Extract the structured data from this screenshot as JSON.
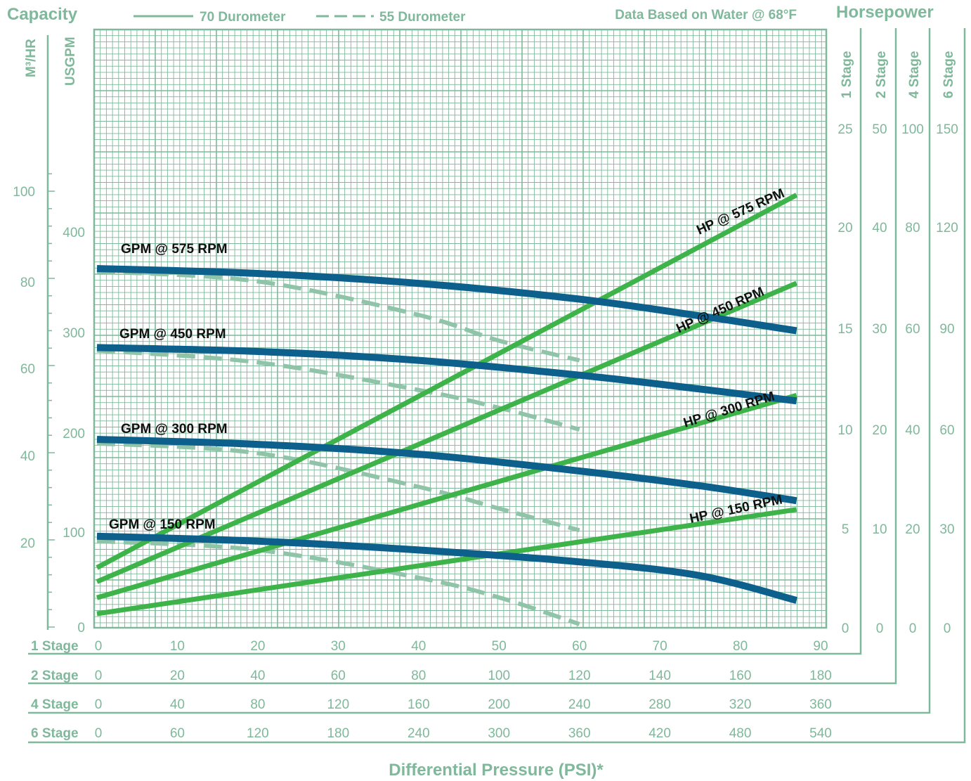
{
  "colors": {
    "axis_text": "#7fb89a",
    "grid": "#7fb89a",
    "gpm_curve": "#0d5f8c",
    "hp_curve": "#3db34a",
    "dash_curve": "#8fc4a8",
    "label_text": "#111111"
  },
  "header": {
    "capacity": "Capacity",
    "horsepower": "Horsepower",
    "legend_solid": "70 Durometer",
    "legend_dashed": "55 Durometer",
    "note": "Data Based on Water @ 68°F"
  },
  "left_axes": {
    "m3hr_title": "M³/HR",
    "usgpm_title": "USGPM",
    "m3hr_ticks": [
      "100",
      "80",
      "60",
      "40",
      "20"
    ],
    "usgpm_ticks": [
      "400",
      "300",
      "200",
      "100",
      "0"
    ]
  },
  "right_axes": [
    {
      "title": "1 Stage",
      "ticks": [
        "25",
        "20",
        "15",
        "10",
        "5",
        "0"
      ]
    },
    {
      "title": "2 Stage",
      "ticks": [
        "50",
        "40",
        "30",
        "20",
        "10",
        "0"
      ]
    },
    {
      "title": "4 Stage",
      "ticks": [
        "100",
        "80",
        "60",
        "40",
        "20",
        "0"
      ]
    },
    {
      "title": "6 Stage",
      "ticks": [
        "150",
        "120",
        "90",
        "60",
        "30",
        "0"
      ]
    }
  ],
  "bottom_axes": [
    {
      "title": "1 Stage",
      "ticks": [
        "0",
        "10",
        "20",
        "30",
        "40",
        "50",
        "60",
        "70",
        "80",
        "90"
      ]
    },
    {
      "title": "2 Stage",
      "ticks": [
        "0",
        "20",
        "40",
        "60",
        "80",
        "100",
        "120",
        "140",
        "160",
        "180"
      ]
    },
    {
      "title": "4 Stage",
      "ticks": [
        "0",
        "40",
        "80",
        "120",
        "160",
        "200",
        "240",
        "280",
        "320",
        "360"
      ]
    },
    {
      "title": "6 Stage",
      "ticks": [
        "0",
        "60",
        "120",
        "180",
        "240",
        "300",
        "360",
        "420",
        "480",
        "540"
      ]
    }
  ],
  "xlabel": "Differential Pressure (PSI)*",
  "chart_data": {
    "type": "line",
    "xlim": [
      0,
      90
    ],
    "gpm_ylim": [
      0,
      440
    ],
    "hp_ylim": [
      0,
      25
    ],
    "series": [
      {
        "name": "GPM @ 575 RPM",
        "kind": "gpm",
        "style": "solid",
        "x": [
          0,
          20,
          40,
          60,
          75,
          87
        ],
        "y": [
          363,
          358,
          348,
          332,
          315,
          300
        ]
      },
      {
        "name": "GPM @ 450 RPM",
        "kind": "gpm",
        "style": "solid",
        "x": [
          0,
          20,
          40,
          60,
          75,
          87
        ],
        "y": [
          283,
          279,
          270,
          255,
          241,
          229
        ]
      },
      {
        "name": "GPM @ 300 RPM",
        "kind": "gpm",
        "style": "solid",
        "x": [
          0,
          20,
          40,
          60,
          75,
          87
        ],
        "y": [
          190,
          185,
          175,
          158,
          143,
          128
        ]
      },
      {
        "name": "GPM @ 150 RPM",
        "kind": "gpm",
        "style": "solid",
        "x": [
          0,
          20,
          40,
          60,
          75,
          87
        ],
        "y": [
          92,
          87,
          78,
          66,
          52,
          27
        ]
      },
      {
        "name": "",
        "kind": "gpm",
        "style": "dashed",
        "x": [
          0,
          20,
          40,
          50,
          60
        ],
        "y": [
          360,
          350,
          316,
          290,
          270
        ]
      },
      {
        "name": "",
        "kind": "gpm",
        "style": "dashed",
        "x": [
          0,
          20,
          40,
          50,
          60
        ],
        "y": [
          280,
          268,
          240,
          222,
          200
        ]
      },
      {
        "name": "",
        "kind": "gpm",
        "style": "dashed",
        "x": [
          0,
          20,
          40,
          50,
          60
        ],
        "y": [
          186,
          176,
          142,
          120,
          98
        ]
      },
      {
        "name": "",
        "kind": "gpm",
        "style": "dashed",
        "x": [
          0,
          20,
          40,
          50,
          60
        ],
        "y": [
          87,
          78,
          50,
          30,
          3
        ]
      },
      {
        "name": "HP @ 575 RPM",
        "kind": "hp",
        "style": "solid",
        "x": [
          0,
          87
        ],
        "y": [
          3.0,
          21.6
        ]
      },
      {
        "name": "HP @ 450 RPM",
        "kind": "hp",
        "style": "solid",
        "x": [
          0,
          87
        ],
        "y": [
          2.3,
          17.2
        ]
      },
      {
        "name": "HP @ 300 RPM",
        "kind": "hp",
        "style": "solid",
        "x": [
          0,
          87
        ],
        "y": [
          1.5,
          11.6
        ]
      },
      {
        "name": "HP @ 150 RPM",
        "kind": "hp",
        "style": "solid",
        "x": [
          0,
          87
        ],
        "y": [
          0.7,
          5.9
        ]
      }
    ],
    "annotations": [
      {
        "text": "GPM @ 575 RPM"
      },
      {
        "text": "GPM @ 450 RPM"
      },
      {
        "text": "GPM @ 300 RPM"
      },
      {
        "text": "GPM @ 150 RPM"
      },
      {
        "text": "HP @ 575 RPM"
      },
      {
        "text": "HP @ 450 RPM"
      },
      {
        "text": "HP @ 300 RPM"
      },
      {
        "text": "HP @ 150 RPM"
      }
    ]
  }
}
